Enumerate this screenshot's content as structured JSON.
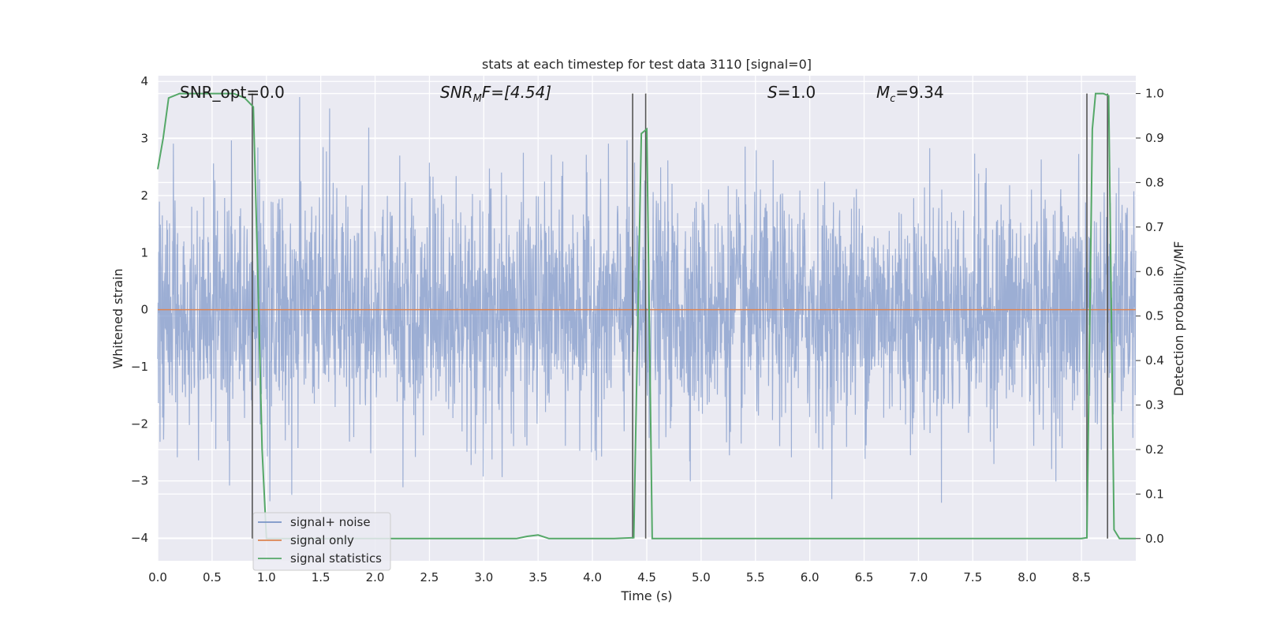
{
  "chart_data": {
    "type": "line",
    "title": "stats at each timestep for test data 3110 [signal=0]",
    "xlabel": "Time (s)",
    "ylabel": "Whitened strain",
    "y2label": "Detection probability/MF",
    "xlim": [
      0.0,
      9.0
    ],
    "ylim": [
      -4.4,
      4.1
    ],
    "y2lim": [
      -0.05,
      1.04
    ],
    "x_ticks": [
      "0.0",
      "0.5",
      "1.0",
      "1.5",
      "2.0",
      "2.5",
      "3.0",
      "3.5",
      "4.0",
      "4.5",
      "5.0",
      "5.5",
      "6.0",
      "6.5",
      "7.0",
      "7.5",
      "8.0",
      "8.5"
    ],
    "y_ticks": [
      "4",
      "3",
      "2",
      "1",
      "0",
      "−1",
      "−2",
      "−3",
      "−4"
    ],
    "y2_ticks": [
      "1.0",
      "0.9",
      "0.8",
      "0.7",
      "0.6",
      "0.5",
      "0.4",
      "0.3",
      "0.2",
      "0.1",
      "0.0"
    ],
    "grid": true,
    "legend_position": "lower-left",
    "annotations": {
      "snr_opt": "SNR_opt=0.0",
      "snr_mf_prefix": "SNR",
      "snr_mf_sub": "M",
      "snr_mf_suffix": "F=[4.54]",
      "s_sym": "S",
      "s_val": "=1.0",
      "mc_sym": "M",
      "mc_sub": "c",
      "mc_val": "=9.34"
    },
    "series": [
      {
        "name": "signal+ noise",
        "color": "#7a94c7",
        "noise_sigma": 1.0,
        "x_range": [
          0.0,
          9.0
        ]
      },
      {
        "name": "signal only",
        "color": "#dd8452",
        "x": [
          0.0,
          9.0
        ],
        "y": [
          0.0,
          0.0
        ]
      },
      {
        "name": "signal statistics",
        "color": "#55a868",
        "axis": "right",
        "x": [
          0.0,
          0.05,
          0.1,
          0.2,
          0.3,
          0.4,
          0.5,
          0.6,
          0.7,
          0.8,
          0.88,
          0.92,
          0.96,
          1.0,
          1.2,
          1.5,
          2.0,
          2.5,
          3.0,
          3.3,
          3.4,
          3.5,
          3.6,
          3.8,
          4.0,
          4.2,
          4.38,
          4.45,
          4.5,
          4.55,
          4.6,
          4.7,
          5.0,
          6.0,
          7.0,
          8.0,
          8.45,
          8.5,
          8.55,
          8.6,
          8.63,
          8.7,
          8.75,
          8.8,
          8.85,
          8.9,
          9.0
        ],
        "y": [
          0.83,
          0.9,
          0.99,
          1.0,
          1.0,
          1.0,
          1.0,
          1.0,
          1.0,
          0.99,
          0.97,
          0.6,
          0.2,
          0.0,
          0.0,
          0.0,
          0.0,
          0.0,
          0.0,
          0.0,
          0.005,
          0.008,
          0.0,
          0.0,
          0.0,
          0.0,
          0.002,
          0.91,
          0.92,
          0.0,
          0.0,
          0.0,
          0.0,
          0.0,
          0.0,
          0.0,
          0.0,
          0.0,
          0.002,
          0.92,
          1.0,
          1.0,
          0.995,
          0.02,
          0.0,
          0.0,
          0.0
        ]
      }
    ],
    "marker_lines_x": [
      0.87,
      4.37,
      4.49,
      8.55,
      8.74
    ]
  }
}
